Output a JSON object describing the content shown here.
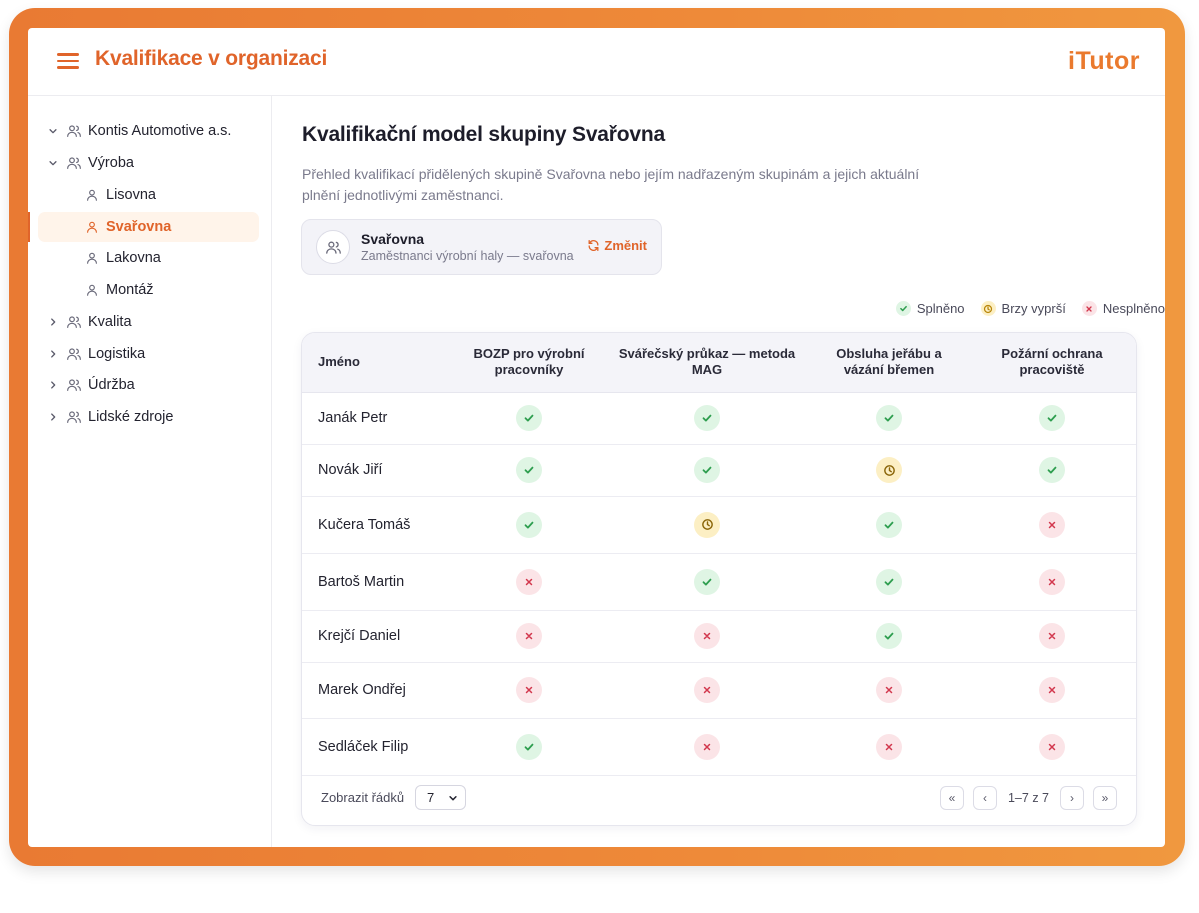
{
  "header": {
    "title": "Kvalifikace v organizaci",
    "logo": "iTutor"
  },
  "sidebar": {
    "items": [
      {
        "label": "Kontis Automotive a.s.",
        "expanded": true,
        "icon": "users-icon"
      },
      {
        "label": "Výroba",
        "expanded": true,
        "icon": "users-icon"
      },
      {
        "label": "Lisovna",
        "icon": "user-icon"
      },
      {
        "label": "Svařovna",
        "icon": "user-icon",
        "active": true
      },
      {
        "label": "Lakovna",
        "icon": "user-icon"
      },
      {
        "label": "Montáž",
        "icon": "user-icon"
      },
      {
        "label": "Kvalita",
        "expanded": false,
        "icon": "users-icon"
      },
      {
        "label": "Logistika",
        "expanded": false,
        "icon": "users-icon"
      },
      {
        "label": "Údržba",
        "expanded": false,
        "icon": "users-icon"
      },
      {
        "label": "Lidské zdroje",
        "expanded": false,
        "icon": "users-icon"
      }
    ]
  },
  "main": {
    "title": "Kvalifikační model skupiny Svařovna",
    "description": "Přehled kvalifikací přidělených skupině Svařovna nebo jejím nadřazeným skupinám a jejich aktuální plnění jednotlivými zaměstnanci.",
    "group": {
      "name": "Svařovna",
      "subtitle": "Zaměstnanci výrobní haly — svařovna",
      "change_label": "Změnit"
    },
    "legend": {
      "ok": "Splněno",
      "warn": "Brzy vyprší",
      "no": "Nesplněno"
    },
    "table": {
      "columns": [
        "Jméno",
        "BOZP pro výrobní pracovníky",
        "Svářečský průkaz — metoda MAG",
        "Obsluha jeřábu a vázání břemen",
        "Požární ochrana pracoviště"
      ],
      "rows": [
        {
          "name": "Janák Petr",
          "status": [
            "ok",
            "ok",
            "ok",
            "ok"
          ]
        },
        {
          "name": "Novák Jiří",
          "status": [
            "ok",
            "ok",
            "warn",
            "ok"
          ]
        },
        {
          "name": "Kučera Tomáš",
          "status": [
            "ok",
            "warn",
            "ok",
            "no"
          ]
        },
        {
          "name": "Bartoš Martin",
          "status": [
            "no",
            "ok",
            "ok",
            "no"
          ]
        },
        {
          "name": "Krejčí Daniel",
          "status": [
            "no",
            "no",
            "ok",
            "no"
          ]
        },
        {
          "name": "Marek Ondřej",
          "status": [
            "no",
            "no",
            "no",
            "no"
          ]
        },
        {
          "name": "Sedláček Filip",
          "status": [
            "ok",
            "no",
            "no",
            "no"
          ]
        }
      ]
    },
    "footer": {
      "rows_label": "Zobrazit řádků",
      "rows_value": "7",
      "range": "1–7 z 7",
      "first": "«",
      "prev": "‹",
      "next": "›",
      "last": "»"
    }
  },
  "colors": {
    "accent": "#e0642a",
    "ok": "#2e9e4f",
    "warn": "#b8860b",
    "no": "#d2374d"
  }
}
